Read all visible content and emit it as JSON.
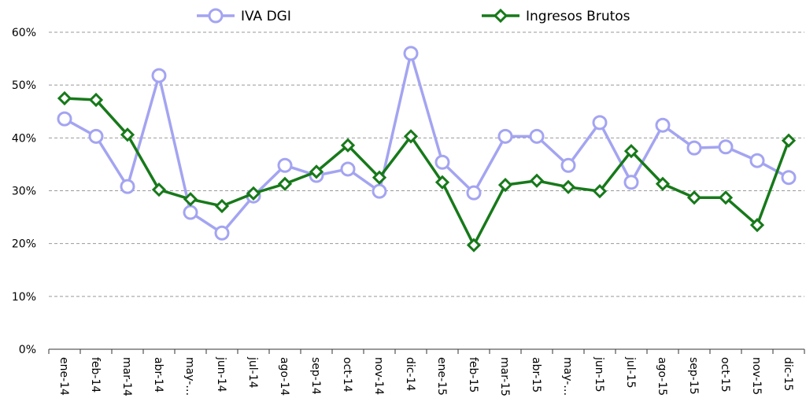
{
  "chart_data": {
    "type": "line",
    "categories": [
      "ene-14",
      "feb-14",
      "mar-14",
      "abr-14",
      "may-…",
      "jun-14",
      "jul-14",
      "ago-14",
      "sep-14",
      "oct-14",
      "nov-14",
      "dic-14",
      "ene-15",
      "feb-15",
      "mar-15",
      "abr-15",
      "may-…",
      "jun-15",
      "jul-15",
      "ago-15",
      "sep-15",
      "oct-15",
      "nov-15",
      "dic-15"
    ],
    "series": [
      {
        "name": "IVA DGI",
        "color": "#a4a4f2",
        "marker": "circle",
        "values": [
          43.6,
          40.3,
          30.8,
          51.8,
          25.9,
          22.0,
          29.0,
          34.8,
          32.9,
          34.1,
          29.9,
          56.0,
          35.4,
          29.6,
          40.3,
          40.3,
          34.8,
          42.9,
          31.6,
          42.4,
          38.1,
          38.3,
          35.7,
          32.5
        ]
      },
      {
        "name": "Ingresos Brutos",
        "color": "#17791a",
        "marker": "diamond",
        "values": [
          47.5,
          47.2,
          40.6,
          30.2,
          28.4,
          27.1,
          29.5,
          31.3,
          33.6,
          38.6,
          32.5,
          40.3,
          31.6,
          19.7,
          31.1,
          31.9,
          30.7,
          29.9,
          37.5,
          31.3,
          28.7,
          28.7,
          23.5,
          39.5
        ]
      }
    ],
    "ylim": [
      0,
      60
    ],
    "yticks": [
      {
        "value": 0,
        "label": "0%"
      },
      {
        "value": 10,
        "label": "10%"
      },
      {
        "value": 20,
        "label": "20%"
      },
      {
        "value": 30,
        "label": "30%"
      },
      {
        "value": 40,
        "label": "40%"
      },
      {
        "value": 50,
        "label": "50%"
      },
      {
        "value": 60,
        "label": "60%"
      }
    ],
    "grid": true,
    "legend": "top"
  }
}
